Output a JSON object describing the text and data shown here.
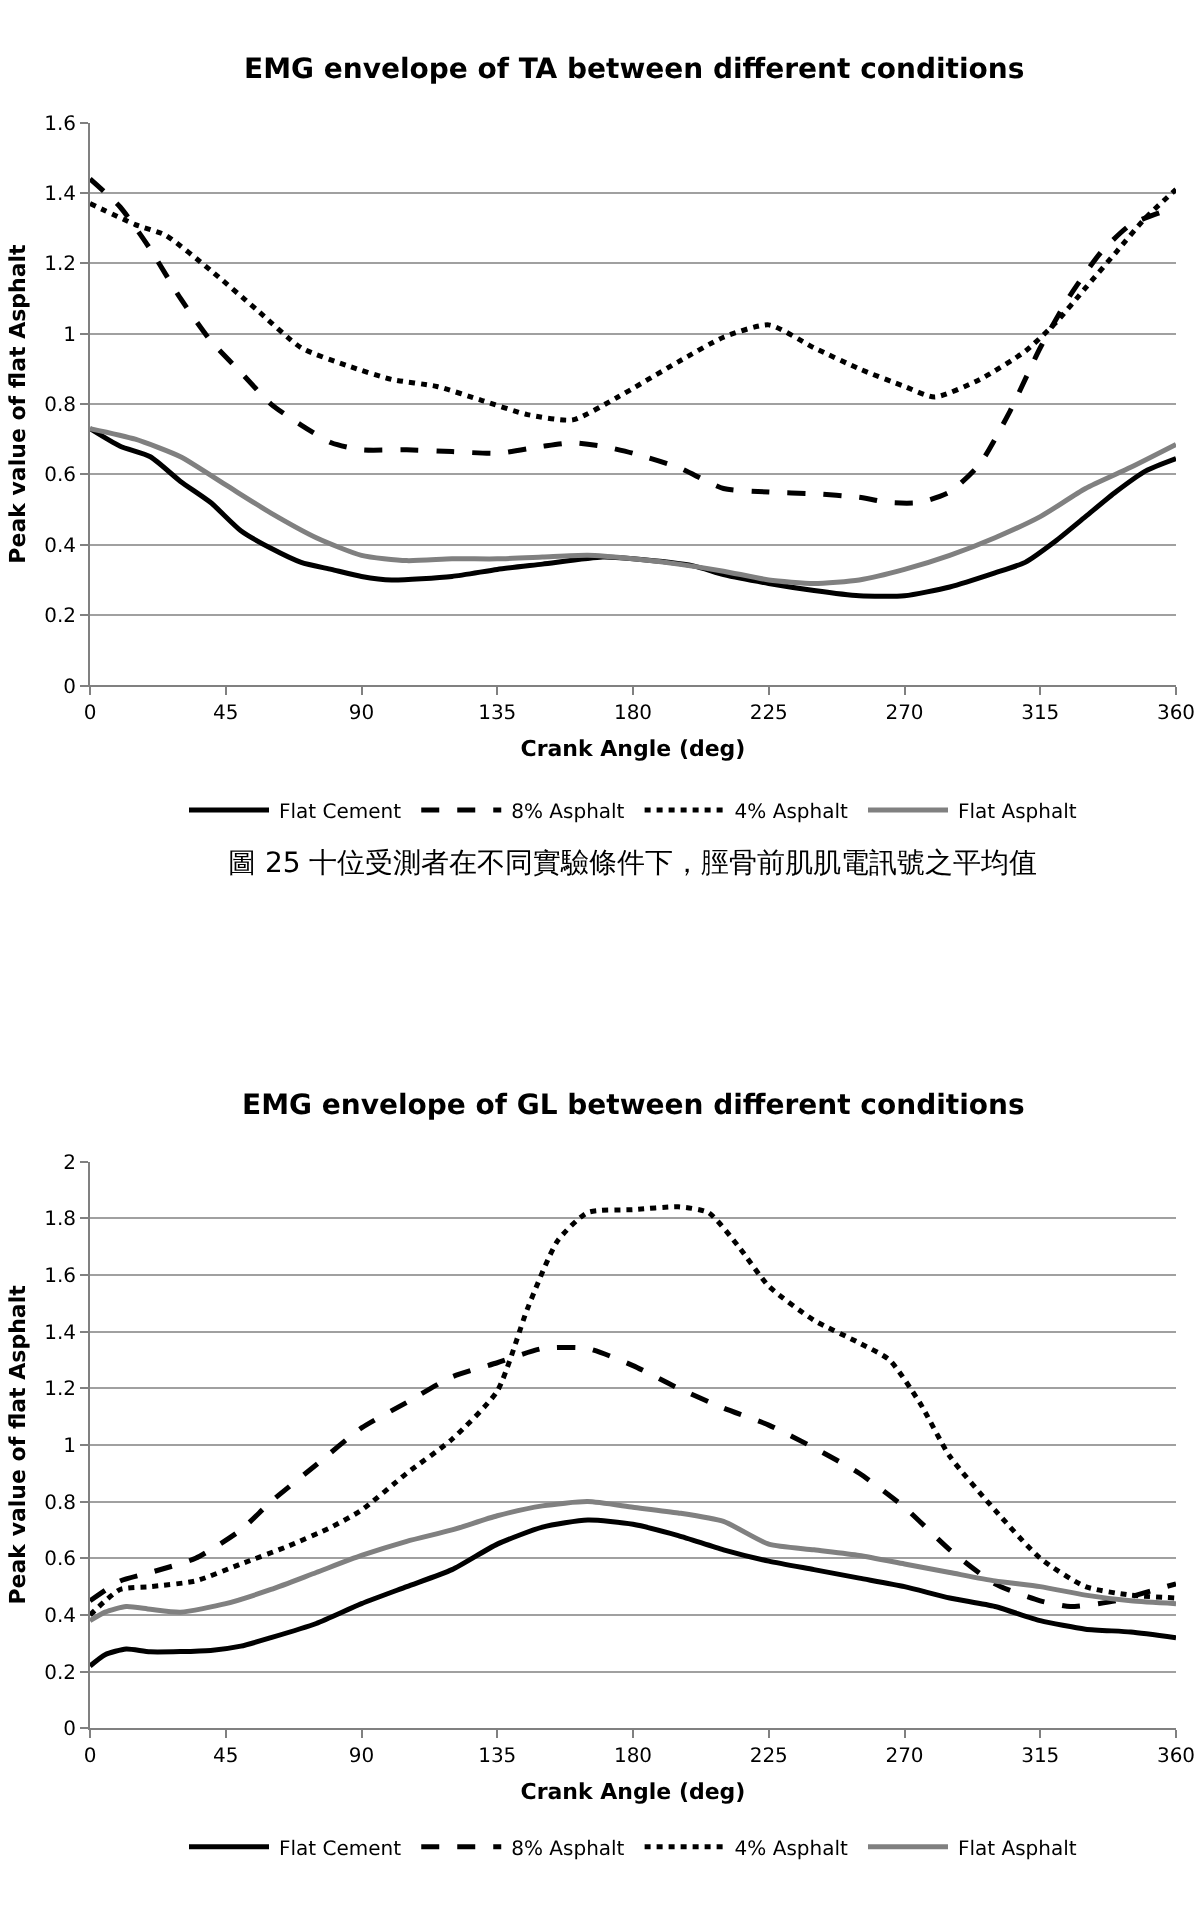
{
  "chart_data": [
    {
      "type": "line",
      "title": "EMG envelope of TA between different conditions",
      "xlabel": "Crank Angle (deg)",
      "ylabel": "Peak value of flat Asphalt",
      "xlim": [
        0,
        360
      ],
      "xticks": [
        0,
        45,
        90,
        135,
        180,
        225,
        270,
        315,
        360
      ],
      "ylim": [
        0,
        1.6
      ],
      "yticks": [
        0,
        0.2,
        0.4,
        0.6,
        0.8,
        1,
        1.2,
        1.4,
        1.6
      ],
      "grid": "y",
      "legend": "bottom",
      "annotations": [
        "圖 25 十位受測者在不同實驗條件下，脛骨前肌肌電訊號之平均值"
      ],
      "series": [
        {
          "name": "Flat Cement",
          "color": "#000000",
          "line_style": "solid",
          "x": [
            0,
            10,
            20,
            30,
            40,
            50,
            60,
            70,
            80,
            90,
            100,
            120,
            135,
            150,
            170,
            180,
            200,
            210,
            225,
            240,
            255,
            270,
            285,
            300,
            310,
            320,
            330,
            340,
            350,
            360
          ],
          "values": [
            0.73,
            0.68,
            0.65,
            0.58,
            0.52,
            0.44,
            0.39,
            0.35,
            0.33,
            0.31,
            0.3,
            0.31,
            0.33,
            0.345,
            0.365,
            0.36,
            0.34,
            0.315,
            0.29,
            0.27,
            0.255,
            0.255,
            0.28,
            0.32,
            0.35,
            0.41,
            0.48,
            0.55,
            0.61,
            0.645
          ]
        },
        {
          "name": "8% Asphalt",
          "color": "#000000",
          "line_style": "dashed",
          "x": [
            0,
            10,
            20,
            30,
            40,
            50,
            60,
            70,
            80,
            90,
            105,
            120,
            135,
            150,
            160,
            170,
            180,
            195,
            210,
            225,
            240,
            255,
            265,
            275,
            285,
            295,
            305,
            315,
            325,
            335,
            345,
            360
          ],
          "values": [
            1.44,
            1.36,
            1.24,
            1.1,
            0.98,
            0.89,
            0.8,
            0.74,
            0.69,
            0.67,
            0.67,
            0.665,
            0.66,
            0.68,
            0.69,
            0.68,
            0.66,
            0.62,
            0.56,
            0.55,
            0.545,
            0.535,
            0.52,
            0.52,
            0.55,
            0.63,
            0.78,
            0.96,
            1.11,
            1.23,
            1.31,
            1.36
          ]
        },
        {
          "name": "4% Asphalt",
          "color": "#000000",
          "line_style": "dotted",
          "x": [
            0,
            15,
            25,
            40,
            55,
            70,
            85,
            100,
            115,
            130,
            145,
            160,
            175,
            195,
            210,
            225,
            240,
            255,
            270,
            280,
            295,
            310,
            320,
            330,
            340,
            350,
            360
          ],
          "values": [
            1.37,
            1.31,
            1.28,
            1.18,
            1.07,
            0.96,
            0.91,
            0.87,
            0.85,
            0.81,
            0.77,
            0.755,
            0.82,
            0.92,
            0.99,
            1.025,
            0.96,
            0.9,
            0.85,
            0.82,
            0.87,
            0.95,
            1.03,
            1.13,
            1.23,
            1.33,
            1.41
          ]
        },
        {
          "name": "Flat Asphalt",
          "color": "#808080",
          "line_style": "solid",
          "x": [
            0,
            15,
            30,
            45,
            60,
            75,
            90,
            105,
            120,
            135,
            150,
            165,
            180,
            195,
            210,
            225,
            240,
            255,
            270,
            285,
            300,
            315,
            330,
            345,
            360
          ],
          "values": [
            0.73,
            0.7,
            0.65,
            0.57,
            0.49,
            0.42,
            0.37,
            0.355,
            0.36,
            0.36,
            0.365,
            0.37,
            0.36,
            0.345,
            0.325,
            0.3,
            0.29,
            0.3,
            0.33,
            0.37,
            0.42,
            0.48,
            0.56,
            0.62,
            0.685
          ]
        }
      ]
    },
    {
      "type": "line",
      "title": "EMG envelope of GL between different conditions",
      "xlabel": "Crank Angle (deg)",
      "ylabel": "Peak value of flat Asphalt",
      "xlim": [
        0,
        360
      ],
      "xticks": [
        0,
        45,
        90,
        135,
        180,
        225,
        270,
        315,
        360
      ],
      "ylim": [
        0,
        2
      ],
      "yticks": [
        0,
        0.2,
        0.4,
        0.6,
        0.8,
        1,
        1.2,
        1.4,
        1.6,
        1.8,
        2
      ],
      "grid": "y",
      "legend": "bottom",
      "series": [
        {
          "name": "Flat Cement",
          "color": "#000000",
          "line_style": "solid",
          "x": [
            0,
            5,
            12,
            20,
            40,
            50,
            60,
            75,
            90,
            105,
            120,
            135,
            150,
            165,
            180,
            195,
            210,
            225,
            240,
            255,
            270,
            285,
            300,
            315,
            330,
            345,
            360
          ],
          "values": [
            0.22,
            0.26,
            0.28,
            0.27,
            0.275,
            0.29,
            0.32,
            0.37,
            0.44,
            0.5,
            0.56,
            0.65,
            0.71,
            0.735,
            0.72,
            0.68,
            0.63,
            0.59,
            0.56,
            0.53,
            0.5,
            0.46,
            0.43,
            0.38,
            0.35,
            0.34,
            0.32
          ]
        },
        {
          "name": "8% Asphalt",
          "color": "#000000",
          "line_style": "dashed",
          "x": [
            0,
            10,
            20,
            35,
            50,
            60,
            75,
            90,
            105,
            120,
            135,
            150,
            165,
            180,
            195,
            210,
            225,
            240,
            255,
            270,
            285,
            300,
            315,
            325,
            340,
            350,
            360
          ],
          "values": [
            0.45,
            0.52,
            0.55,
            0.6,
            0.7,
            0.8,
            0.93,
            1.06,
            1.15,
            1.24,
            1.29,
            1.34,
            1.34,
            1.28,
            1.2,
            1.13,
            1.07,
            0.99,
            0.9,
            0.78,
            0.63,
            0.51,
            0.45,
            0.43,
            0.45,
            0.48,
            0.51
          ]
        },
        {
          "name": "4% Asphalt",
          "color": "#000000",
          "line_style": "dotted",
          "x": [
            0,
            10,
            20,
            35,
            50,
            65,
            80,
            90,
            105,
            120,
            135,
            145,
            155,
            165,
            180,
            195,
            205,
            215,
            225,
            240,
            255,
            265,
            275,
            285,
            300,
            315,
            330,
            345,
            360
          ],
          "values": [
            0.4,
            0.49,
            0.5,
            0.52,
            0.58,
            0.64,
            0.71,
            0.77,
            0.9,
            1.02,
            1.19,
            1.48,
            1.72,
            1.82,
            1.83,
            1.84,
            1.82,
            1.7,
            1.56,
            1.44,
            1.36,
            1.3,
            1.15,
            0.96,
            0.77,
            0.6,
            0.5,
            0.47,
            0.46
          ]
        },
        {
          "name": "Flat Asphalt",
          "color": "#808080",
          "line_style": "solid",
          "x": [
            0,
            5,
            12,
            20,
            30,
            45,
            60,
            75,
            90,
            105,
            120,
            135,
            150,
            165,
            180,
            195,
            210,
            225,
            240,
            255,
            270,
            285,
            300,
            315,
            330,
            345,
            360
          ],
          "values": [
            0.38,
            0.41,
            0.43,
            0.42,
            0.41,
            0.44,
            0.49,
            0.55,
            0.61,
            0.66,
            0.7,
            0.75,
            0.785,
            0.8,
            0.78,
            0.76,
            0.73,
            0.65,
            0.63,
            0.61,
            0.58,
            0.55,
            0.52,
            0.5,
            0.47,
            0.45,
            0.44
          ]
        }
      ]
    }
  ]
}
